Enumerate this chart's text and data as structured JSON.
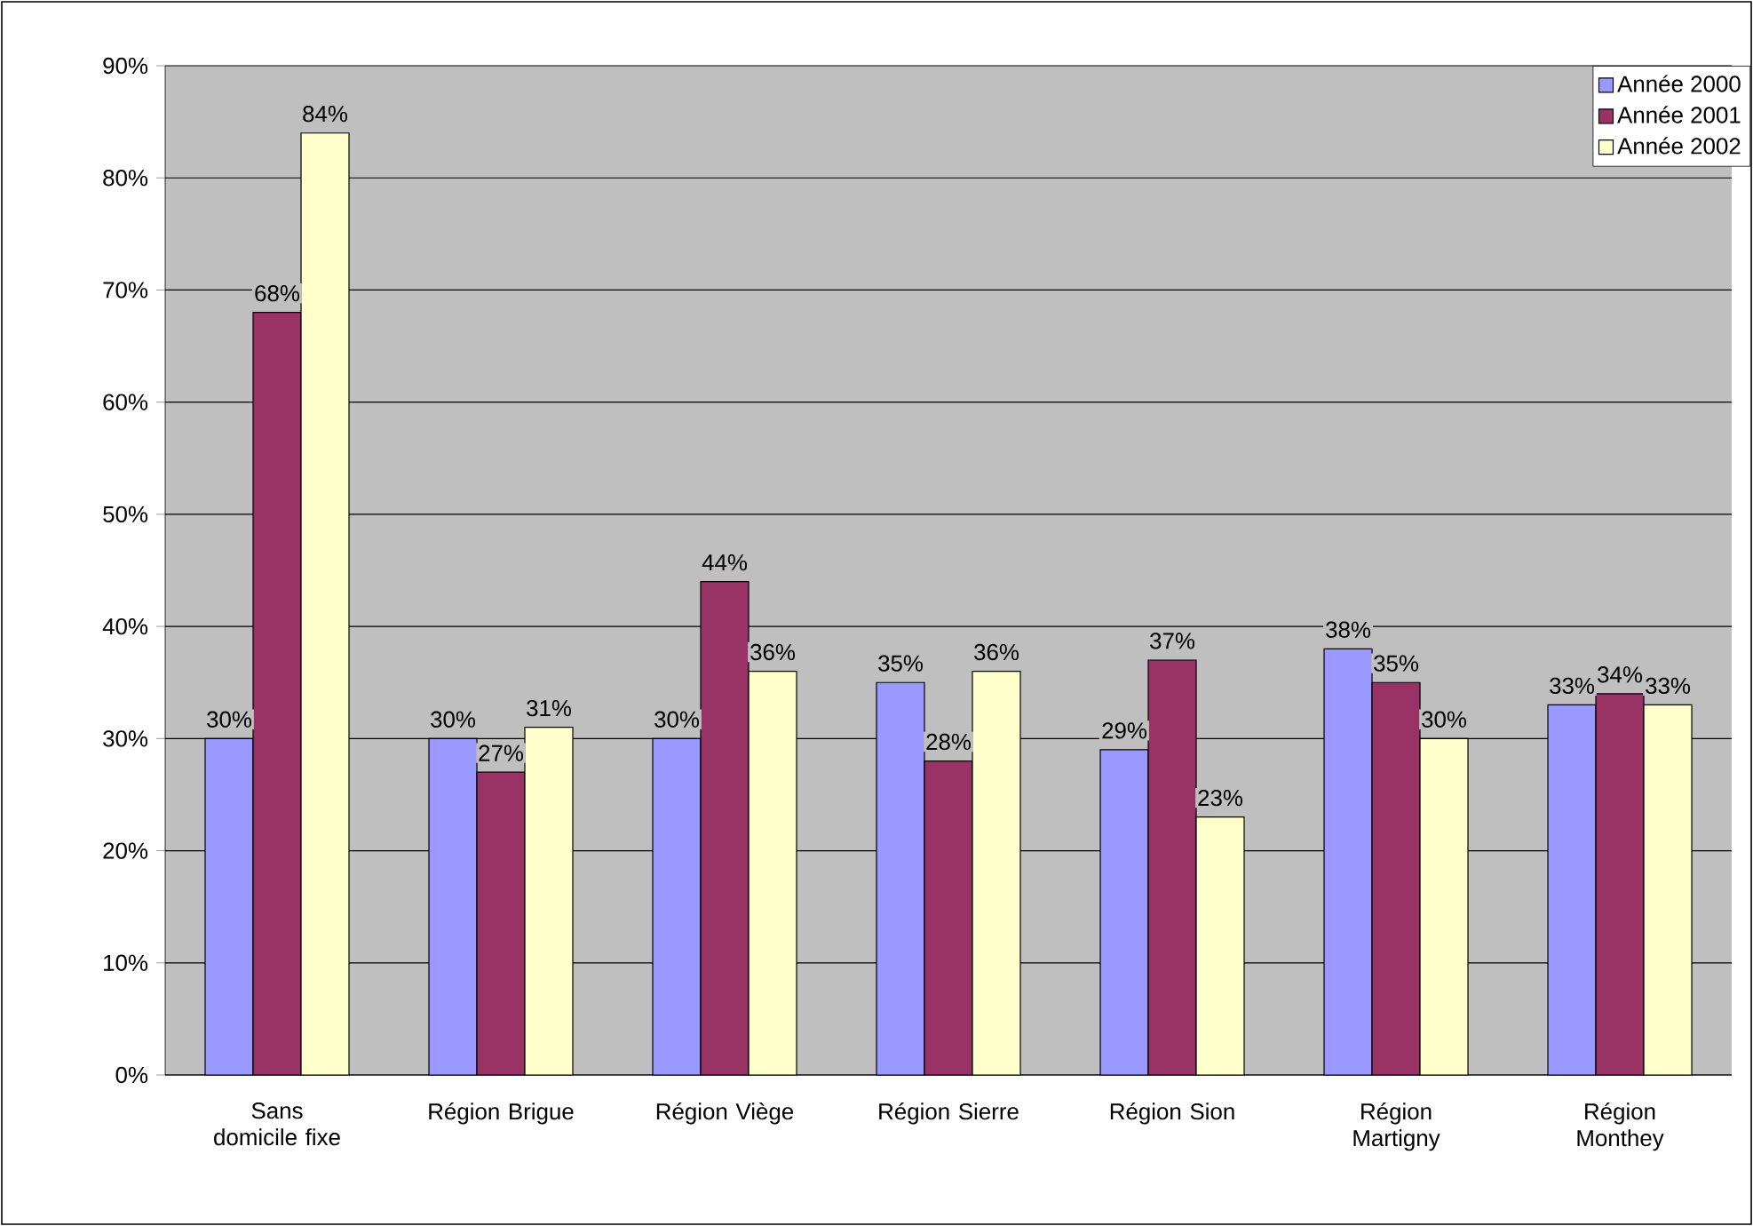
{
  "chart_data": {
    "type": "bar",
    "categories": [
      "Sans domicile fixe",
      "Région Brigue",
      "Région Viège",
      "Région Sierre",
      "Région Sion",
      "Région Martigny",
      "Région Monthey"
    ],
    "series": [
      {
        "name": "Année 2000",
        "color": "#9999ff",
        "values": [
          30,
          30,
          30,
          35,
          29,
          38,
          33
        ],
        "value_labels": [
          "30%",
          "30%",
          "30%",
          "35%",
          "29%",
          "38%",
          "33%"
        ]
      },
      {
        "name": "Année 2001",
        "color": "#993366",
        "values": [
          68,
          27,
          44,
          28,
          37,
          35,
          34
        ],
        "value_labels": [
          "68%",
          "27%",
          "44%",
          "28%",
          "37%",
          "35%",
          "34%"
        ]
      },
      {
        "name": "Année 2002",
        "color": "#ffffcc",
        "values": [
          84,
          31,
          36,
          36,
          23,
          30,
          33
        ],
        "value_labels": [
          "84%",
          "31%",
          "36%",
          "36%",
          "23%",
          "30%",
          "33%"
        ]
      }
    ],
    "ylim": [
      0,
      90
    ],
    "yticks": [
      {
        "value": 0,
        "label": "0%"
      },
      {
        "value": 10,
        "label": "10%"
      },
      {
        "value": 20,
        "label": "20%"
      },
      {
        "value": 30,
        "label": "30%"
      },
      {
        "value": 40,
        "label": "40%"
      },
      {
        "value": 50,
        "label": "50%"
      },
      {
        "value": 60,
        "label": "60%"
      },
      {
        "value": 70,
        "label": "70%"
      },
      {
        "value": 80,
        "label": "80%"
      },
      {
        "value": 90,
        "label": "90%"
      }
    ],
    "grid": "y",
    "legend": "top right"
  }
}
